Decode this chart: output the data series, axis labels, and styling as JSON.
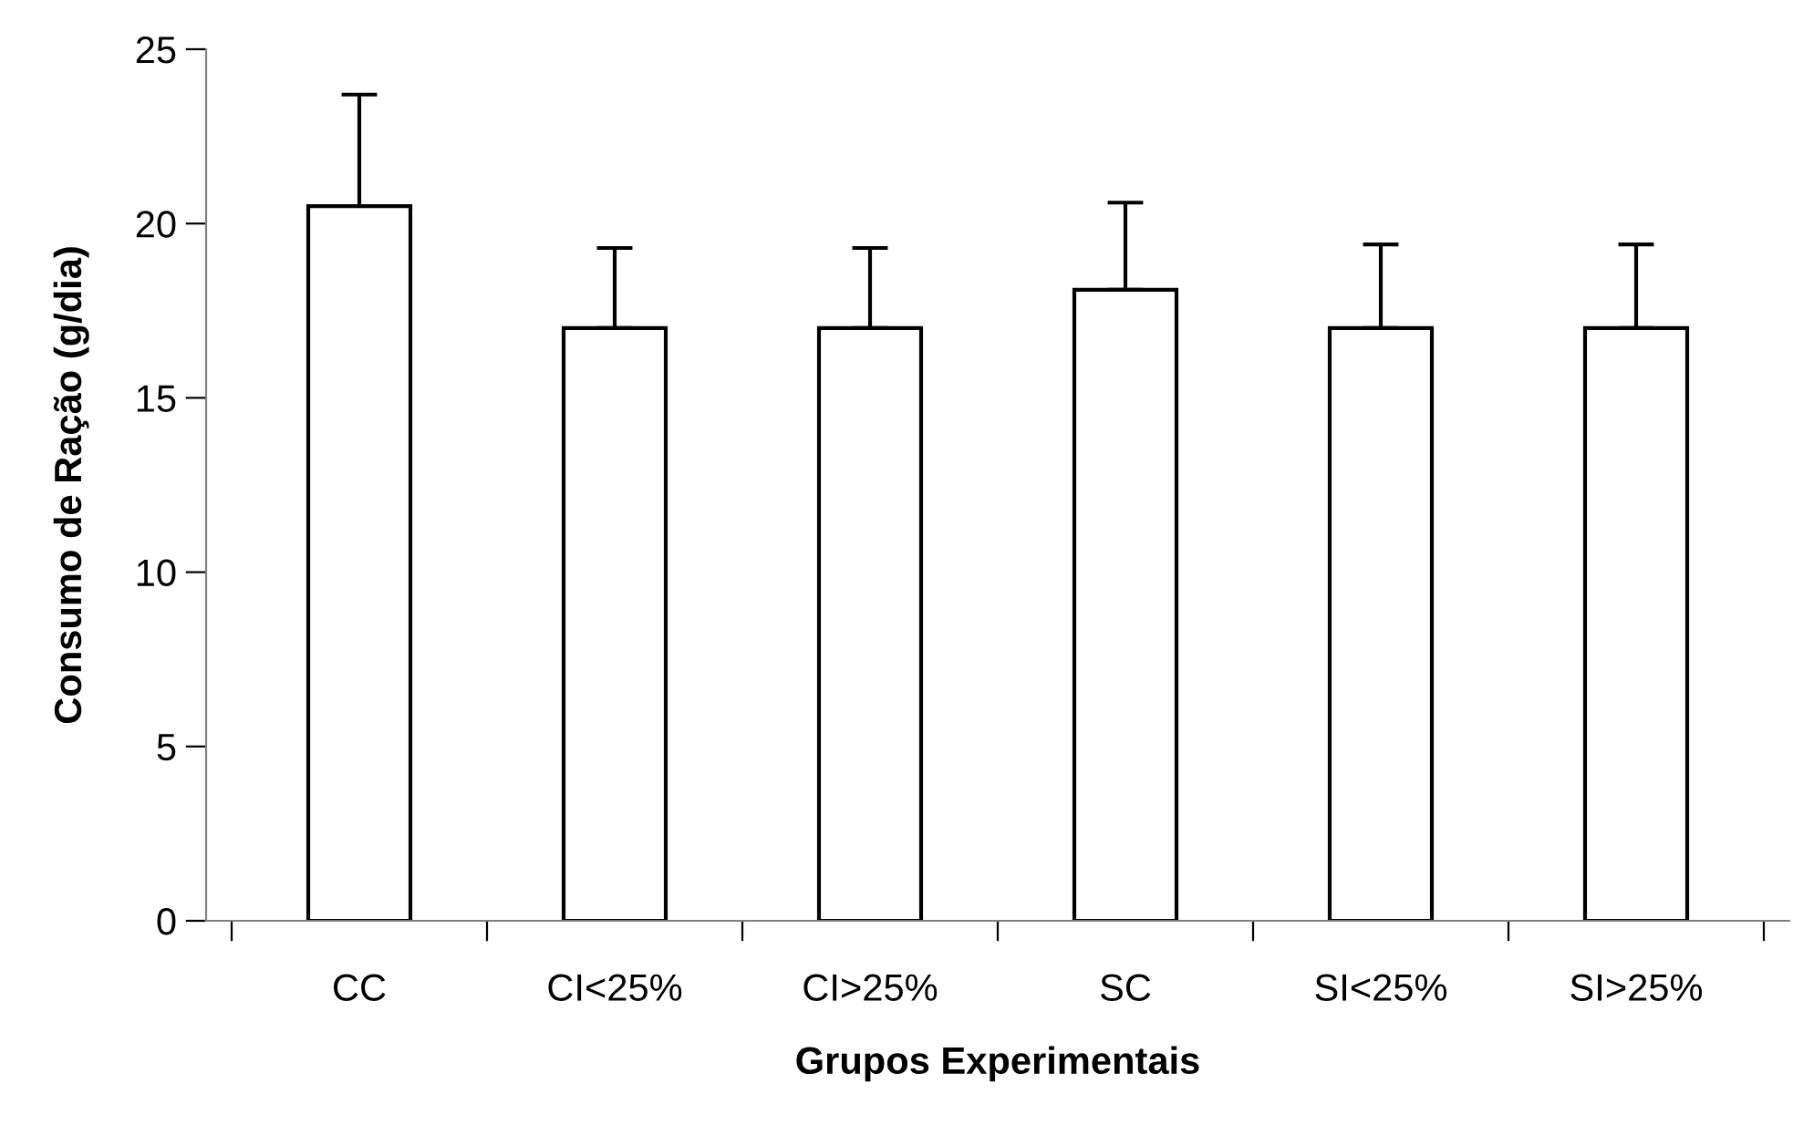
{
  "chart_data": {
    "type": "bar",
    "xlabel": "Grupos Experimentais",
    "ylabel": "Consumo de Ração (g/dia)",
    "categories": [
      "CC",
      "CI<25%",
      "CI>25%",
      "SC",
      "SI<25%",
      "SI>25%"
    ],
    "values": [
      20.5,
      17,
      17,
      18.1,
      17,
      17
    ],
    "errors": [
      [
        20.5,
        23.7
      ],
      [
        17,
        19.3
      ],
      [
        17,
        19.3
      ],
      [
        18.1,
        20.6
      ],
      [
        17,
        19.4
      ],
      [
        17,
        19.4
      ]
    ],
    "color": "#ffffff",
    "ylim": [
      0,
      25
    ],
    "yticks": [
      0,
      5,
      10,
      15,
      20,
      25
    ],
    "grid": false,
    "legend": false
  }
}
